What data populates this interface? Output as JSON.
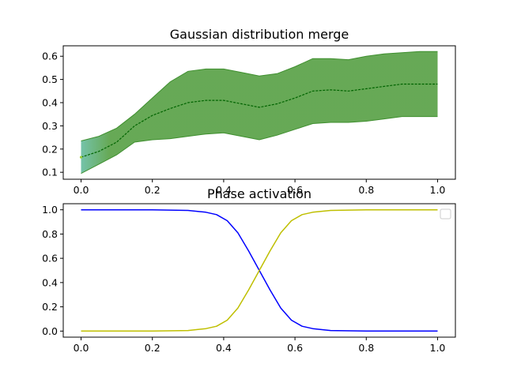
{
  "chart_data": [
    {
      "type": "area",
      "title": "Gaussian distribution merge",
      "xlabel": "",
      "ylabel": "",
      "xlim": [
        -0.05,
        1.05
      ],
      "ylim": [
        0.07,
        0.645
      ],
      "xticks": [
        "0.0",
        "0.2",
        "0.4",
        "0.6",
        "0.8",
        "1.0"
      ],
      "yticks": [
        "0.1",
        "0.2",
        "0.3",
        "0.4",
        "0.5",
        "0.6"
      ],
      "grid": false,
      "legend": "none",
      "x": [
        0.0,
        0.05,
        0.1,
        0.15,
        0.2,
        0.25,
        0.3,
        0.35,
        0.4,
        0.45,
        0.5,
        0.55,
        0.6,
        0.65,
        0.7,
        0.75,
        0.8,
        0.85,
        0.9,
        0.95,
        1.0
      ],
      "series": [
        {
          "role": "mean",
          "color": "#006400",
          "values": [
            0.165,
            0.19,
            0.23,
            0.3,
            0.345,
            0.375,
            0.4,
            0.41,
            0.41,
            0.395,
            0.38,
            0.395,
            0.42,
            0.45,
            0.455,
            0.45,
            0.46,
            0.47,
            0.48,
            0.48,
            0.48
          ]
        },
        {
          "role": "upper",
          "color": "#3f8f2f",
          "values": [
            0.235,
            0.255,
            0.29,
            0.35,
            0.42,
            0.49,
            0.535,
            0.545,
            0.545,
            0.53,
            0.515,
            0.525,
            0.555,
            0.59,
            0.59,
            0.585,
            0.6,
            0.61,
            0.615,
            0.62,
            0.62
          ]
        },
        {
          "role": "lower",
          "color": "#3f8f2f",
          "values": [
            0.095,
            0.135,
            0.175,
            0.23,
            0.24,
            0.245,
            0.255,
            0.265,
            0.27,
            0.255,
            0.24,
            0.26,
            0.285,
            0.31,
            0.315,
            0.315,
            0.32,
            0.33,
            0.34,
            0.34,
            0.34
          ]
        }
      ],
      "fill_color": "#4c9a38",
      "start_fill_color": "#5cb89a"
    },
    {
      "type": "line",
      "title": "Phase activation",
      "xlabel": "",
      "ylabel": "",
      "xlim": [
        -0.05,
        1.05
      ],
      "ylim": [
        -0.05,
        1.05
      ],
      "xticks": [
        "0.0",
        "0.2",
        "0.4",
        "0.6",
        "0.8",
        "1.0"
      ],
      "yticks": [
        "0.0",
        "0.2",
        "0.4",
        "0.6",
        "0.8",
        "1.0"
      ],
      "grid": false,
      "legend": "top-right (empty)",
      "x": [
        0.0,
        0.1,
        0.2,
        0.3,
        0.35,
        0.38,
        0.41,
        0.44,
        0.47,
        0.5,
        0.53,
        0.56,
        0.59,
        0.62,
        0.65,
        0.7,
        0.8,
        0.9,
        1.0
      ],
      "series": [
        {
          "color": "#0000ff",
          "values": [
            1.0,
            1.0,
            1.0,
            0.995,
            0.98,
            0.96,
            0.91,
            0.81,
            0.66,
            0.5,
            0.34,
            0.19,
            0.09,
            0.04,
            0.02,
            0.005,
            0.0,
            0.0,
            0.0
          ]
        },
        {
          "color": "#bfbf00",
          "values": [
            0.0,
            0.0,
            0.0,
            0.005,
            0.02,
            0.04,
            0.09,
            0.19,
            0.34,
            0.5,
            0.66,
            0.81,
            0.91,
            0.96,
            0.98,
            0.995,
            1.0,
            1.0,
            1.0
          ]
        }
      ]
    }
  ]
}
